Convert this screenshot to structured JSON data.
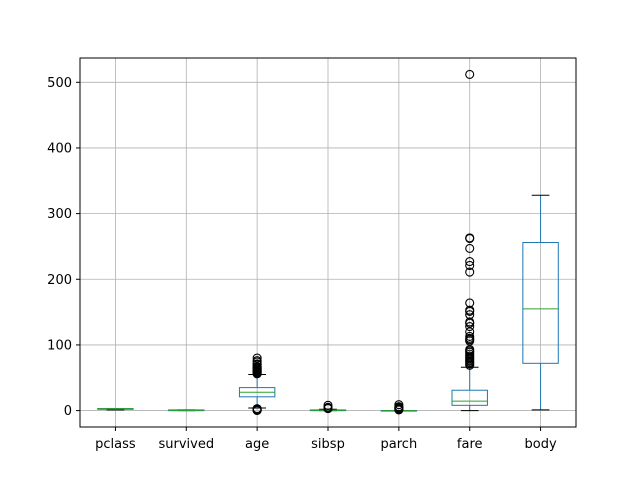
{
  "chart_data": {
    "type": "boxplot",
    "title": "",
    "xlabel": "",
    "ylabel": "",
    "ylim": [
      -25,
      537
    ],
    "yticks": [
      0,
      100,
      200,
      300,
      400,
      500
    ],
    "grid": true,
    "colors": {
      "box": "#1f77b4",
      "median": "#2ca02c",
      "grid": "#b0b0b0",
      "axis": "#000000"
    },
    "series": [
      {
        "name": "pclass",
        "q1": 2,
        "median": 3,
        "q3": 3,
        "whisker_low": 1,
        "whisker_high": 3,
        "outliers": []
      },
      {
        "name": "survived",
        "q1": 0,
        "median": 0,
        "q3": 1,
        "whisker_low": 0,
        "whisker_high": 1,
        "outliers": []
      },
      {
        "name": "age",
        "q1": 21,
        "median": 28,
        "q3": 35,
        "whisker_low": 4,
        "whisker_high": 55,
        "outliers": [
          0.2,
          0.5,
          0.8,
          1,
          2,
          3,
          56,
          57,
          58,
          59,
          60,
          61,
          62,
          63,
          64,
          65,
          66,
          67,
          70,
          71,
          74,
          76,
          80
        ]
      },
      {
        "name": "sibsp",
        "q1": 0,
        "median": 0,
        "q3": 1,
        "whisker_low": 0,
        "whisker_high": 2,
        "outliers": [
          3,
          4,
          5,
          8
        ]
      },
      {
        "name": "parch",
        "q1": 0,
        "median": 0,
        "q3": 0,
        "whisker_low": 0,
        "whisker_high": 0,
        "outliers": [
          1,
          2,
          3,
          4,
          5,
          6,
          9
        ]
      },
      {
        "name": "fare",
        "q1": 8,
        "median": 14.5,
        "q3": 31,
        "whisker_low": 0,
        "whisker_high": 66,
        "outliers": [
          69,
          71,
          73,
          75,
          77,
          79,
          81,
          83,
          86,
          89,
          91,
          93,
          106,
          108,
          110,
          113,
          120,
          128,
          133,
          135,
          146,
          151,
          153,
          164,
          211,
          221,
          227,
          247,
          262,
          263,
          512
        ]
      },
      {
        "name": "body",
        "q1": 72,
        "median": 155,
        "q3": 256,
        "whisker_low": 1,
        "whisker_high": 328,
        "outliers": []
      }
    ]
  }
}
